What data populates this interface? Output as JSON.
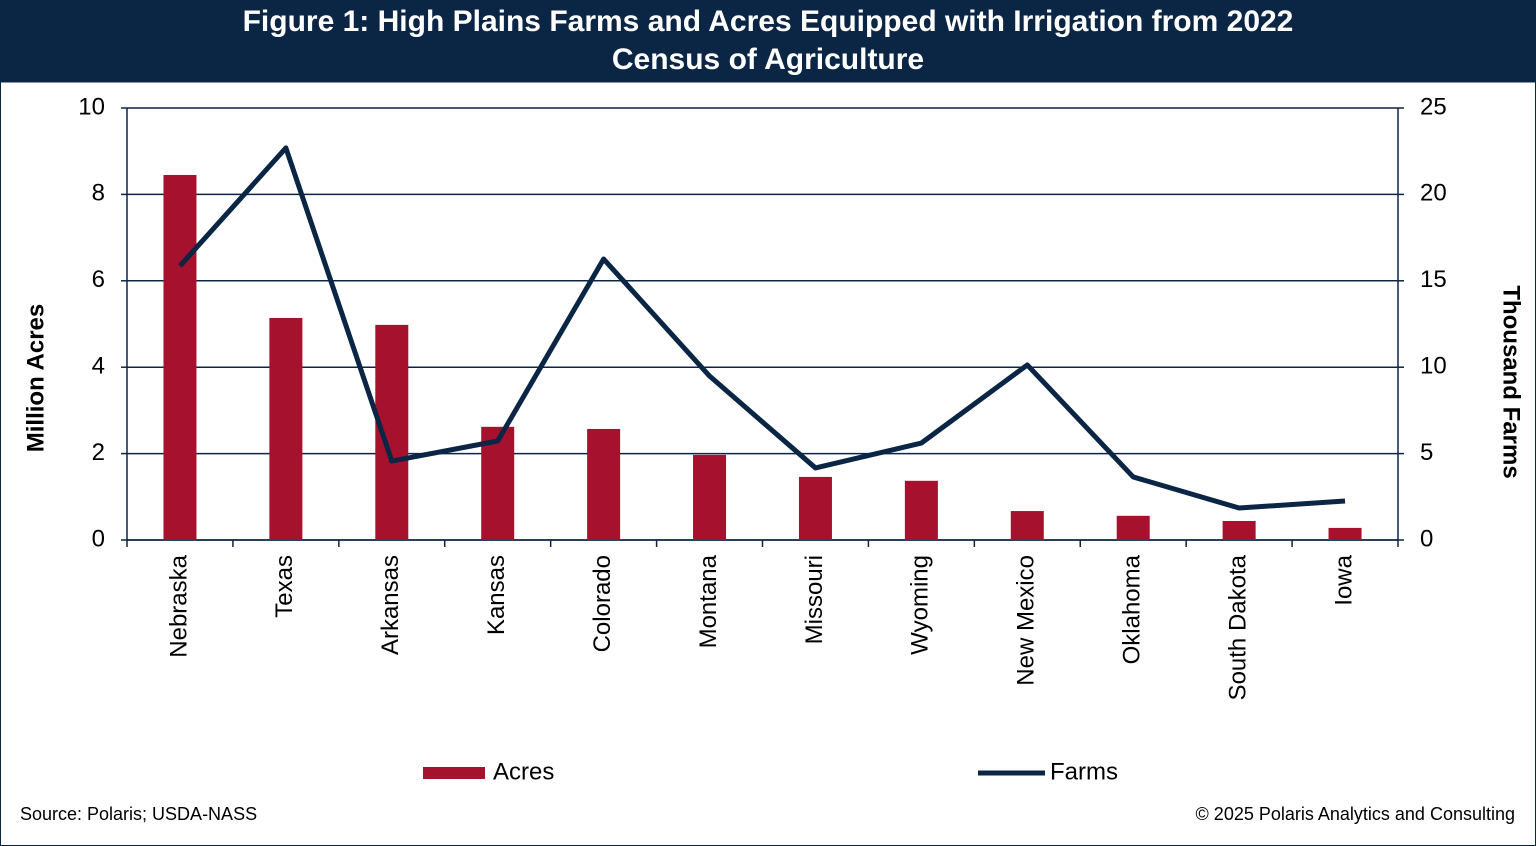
{
  "chart_data": {
    "type": "bar",
    "title": "Figure 1: High Plains Farms and Acres Equipped with Irrigation from 2022 Census of Agriculture",
    "categories": [
      "Nebraska",
      "Texas",
      "Arkansas",
      "Kansas",
      "Colorado",
      "Montana",
      "Missouri",
      "Wyoming",
      "New Mexico",
      "Oklahoma",
      "South Dakota",
      "Iowa"
    ],
    "series": [
      {
        "name": "Acres",
        "type": "bar",
        "color": "#a6112e",
        "values": [
          8.45,
          5.14,
          4.98,
          2.62,
          2.57,
          1.97,
          1.46,
          1.37,
          0.67,
          0.56,
          0.44,
          0.28
        ]
      },
      {
        "name": "Farms",
        "type": "line",
        "axis": "y2",
        "color": "#0b2545",
        "values": [
          15.86,
          22.69,
          4.57,
          5.73,
          16.26,
          9.49,
          4.17,
          5.61,
          10.13,
          3.65,
          1.85,
          2.26
        ]
      }
    ],
    "ylabel": "Million Acres",
    "y2label": "Thousand Farms",
    "ylim": [
      0,
      10
    ],
    "yticks": [
      0,
      2,
      4,
      6,
      8,
      10
    ],
    "y2lim": [
      0,
      25
    ],
    "y2ticks": [
      0,
      5,
      10,
      15,
      20,
      25
    ],
    "grid": true,
    "legend": "bottom",
    "source": "Source: Polaris; USDA-NASS",
    "copyright": "© 2025 Polaris Analytics and Consulting"
  }
}
